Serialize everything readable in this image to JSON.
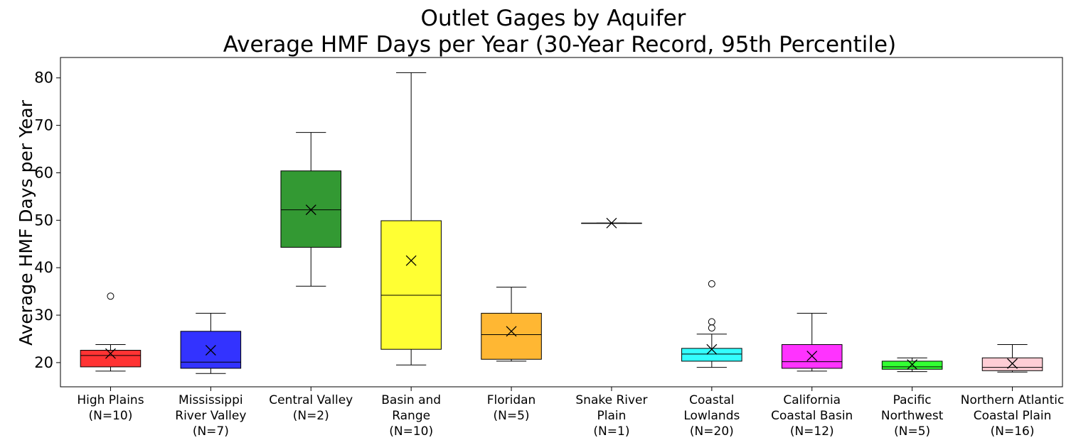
{
  "chart_data": {
    "type": "box",
    "title_lines": [
      "Outlet Gages by Aquifer",
      "Average HMF Days per Year (30-Year Record, 95th Percentile)"
    ],
    "xlabel": "",
    "ylabel": "Average HMF Days per Year",
    "ylim": [
      14.9,
      84.3
    ],
    "yticks": [
      20,
      30,
      40,
      50,
      60,
      70,
      80
    ],
    "grid": false,
    "mean_marker": "x",
    "groups": [
      {
        "label_lines": [
          "High Plains",
          "(N=10)"
        ],
        "color": "#ff0000",
        "whisker_low": 18.2,
        "q1": 19.1,
        "median": 21.5,
        "q3": 22.6,
        "whisker_high": 23.8,
        "mean": 21.9,
        "outliers": [
          34.0
        ]
      },
      {
        "label_lines": [
          "Mississippi",
          "River Valley",
          "(N=7)"
        ],
        "color": "#0000ff",
        "whisker_low": 17.7,
        "q1": 18.8,
        "median": 20.1,
        "q3": 26.6,
        "whisker_high": 30.4,
        "mean": 22.6,
        "outliers": []
      },
      {
        "label_lines": [
          "Central Valley",
          "(N=2)"
        ],
        "color": "#007f00",
        "whisker_low": 36.1,
        "q1": 44.3,
        "median": 52.2,
        "q3": 60.4,
        "whisker_high": 68.5,
        "mean": 52.2,
        "outliers": []
      },
      {
        "label_lines": [
          "Basin and",
          "Range",
          "(N=10)"
        ],
        "color": "#ffff00",
        "whisker_low": 19.5,
        "q1": 22.8,
        "median": 34.2,
        "q3": 49.9,
        "whisker_high": 81.1,
        "mean": 41.5,
        "outliers": []
      },
      {
        "label_lines": [
          "Floridan",
          "(N=5)"
        ],
        "color": "#ffa500",
        "whisker_low": 20.3,
        "q1": 20.7,
        "median": 25.9,
        "q3": 30.4,
        "whisker_high": 35.9,
        "mean": 26.6,
        "outliers": []
      },
      {
        "label_lines": [
          "Snake River",
          "Plain",
          "(N=1)"
        ],
        "color": "#808080",
        "whisker_low": 49.4,
        "q1": 49.4,
        "median": 49.4,
        "q3": 49.4,
        "whisker_high": 49.4,
        "mean": 49.4,
        "outliers": []
      },
      {
        "label_lines": [
          "Coastal",
          "Lowlands",
          "(N=20)"
        ],
        "color": "#00ffff",
        "whisker_low": 19.0,
        "q1": 20.3,
        "median": 21.8,
        "q3": 23.0,
        "whisker_high": 26.0,
        "mean": 22.8,
        "outliers": [
          27.3,
          28.6,
          36.6
        ]
      },
      {
        "label_lines": [
          "California",
          "Coastal Basin",
          "(N=12)"
        ],
        "color": "#ff00ff",
        "whisker_low": 18.2,
        "q1": 18.8,
        "median": 20.2,
        "q3": 23.8,
        "whisker_high": 30.4,
        "mean": 21.4,
        "outliers": []
      },
      {
        "label_lines": [
          "Pacific",
          "Northwest",
          "(N=5)"
        ],
        "color": "#00ff00",
        "whisker_low": 18.1,
        "q1": 18.6,
        "median": 19.1,
        "q3": 20.3,
        "whisker_high": 21.0,
        "mean": 19.6,
        "outliers": []
      },
      {
        "label_lines": [
          "Northern Atlantic",
          "Coastal Plain",
          "(N=16)"
        ],
        "color": "#ffc0cb",
        "whisker_low": 18.0,
        "q1": 18.3,
        "median": 19.0,
        "q3": 21.0,
        "whisker_high": 23.8,
        "mean": 19.8,
        "outliers": []
      }
    ]
  }
}
